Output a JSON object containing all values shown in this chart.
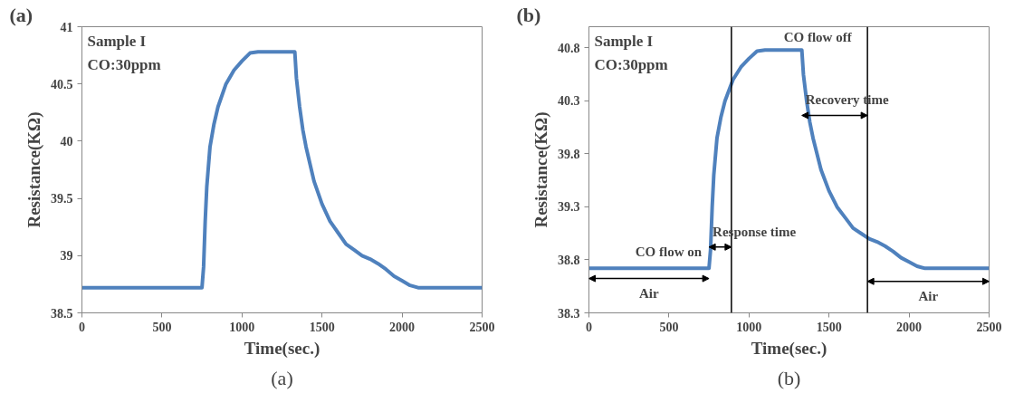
{
  "chart_data": [
    {
      "type": "line",
      "title": "(a)",
      "subtitle": "(a)",
      "xlabel": "Time(sec.)",
      "ylabel": "Resistance(KΩ)",
      "x": [
        0,
        100,
        200,
        300,
        400,
        500,
        600,
        700,
        750,
        760,
        770,
        780,
        800,
        825,
        850,
        900,
        950,
        1000,
        1050,
        1100,
        1200,
        1300,
        1330,
        1340,
        1360,
        1380,
        1400,
        1425,
        1450,
        1500,
        1550,
        1600,
        1650,
        1700,
        1750,
        1800,
        1850,
        1900,
        1950,
        2000,
        2050,
        2100,
        2200,
        2300,
        2400,
        2500
      ],
      "series": [
        {
          "color": "#4f81bd",
          "values": [
            38.72,
            38.72,
            38.72,
            38.72,
            38.72,
            38.72,
            38.72,
            38.72,
            38.72,
            38.9,
            39.3,
            39.6,
            39.95,
            40.15,
            40.3,
            40.5,
            40.62,
            40.7,
            40.77,
            40.78,
            40.78,
            40.78,
            40.78,
            40.55,
            40.3,
            40.1,
            39.95,
            39.8,
            39.65,
            39.45,
            39.3,
            39.2,
            39.1,
            39.05,
            39.0,
            38.97,
            38.93,
            38.88,
            38.82,
            38.78,
            38.74,
            38.72,
            38.72,
            38.72,
            38.72,
            38.72
          ]
        }
      ],
      "xlim": [
        0,
        2500
      ],
      "xticks": [
        0,
        500,
        1000,
        1500,
        2000,
        2500
      ],
      "ylim": [
        38.5,
        41
      ],
      "yticks": [
        38.5,
        39,
        39.5,
        40,
        40.5,
        41
      ],
      "grid": false,
      "line_style": "solid",
      "marker": "none",
      "annotations": [
        "Sample I",
        "CO:30ppm"
      ]
    },
    {
      "type": "line",
      "title": "(b)",
      "subtitle": "(b)",
      "xlabel": "Time(sec.)",
      "ylabel": "Resistance(KΩ)",
      "x": [
        0,
        100,
        200,
        300,
        400,
        500,
        600,
        700,
        750,
        760,
        770,
        780,
        800,
        825,
        850,
        900,
        950,
        1000,
        1050,
        1100,
        1200,
        1300,
        1330,
        1340,
        1360,
        1380,
        1400,
        1425,
        1450,
        1500,
        1550,
        1600,
        1650,
        1700,
        1750,
        1800,
        1850,
        1900,
        1950,
        2000,
        2050,
        2100,
        2200,
        2300,
        2400,
        2500
      ],
      "series": [
        {
          "color": "#4f81bd",
          "values": [
            38.72,
            38.72,
            38.72,
            38.72,
            38.72,
            38.72,
            38.72,
            38.72,
            38.72,
            38.9,
            39.3,
            39.6,
            39.95,
            40.15,
            40.3,
            40.5,
            40.62,
            40.7,
            40.77,
            40.78,
            40.78,
            40.78,
            40.78,
            40.55,
            40.3,
            40.1,
            39.95,
            39.8,
            39.65,
            39.45,
            39.3,
            39.2,
            39.1,
            39.05,
            39.0,
            38.97,
            38.93,
            38.88,
            38.82,
            38.78,
            38.74,
            38.72,
            38.72,
            38.72,
            38.72,
            38.72
          ]
        }
      ],
      "xlim": [
        0,
        2500
      ],
      "xticks": [
        0,
        500,
        1000,
        1500,
        2000,
        2500
      ],
      "ylim": [
        38.3,
        41.0
      ],
      "yticks": [
        38.3,
        38.8,
        39.3,
        39.8,
        40.3,
        40.8
      ],
      "grid": false,
      "line_style": "solid",
      "marker": "none",
      "ref_lines": [
        {
          "axis": "x",
          "value": 890,
          "color": "#000000"
        },
        {
          "axis": "x",
          "value": 1740,
          "color": "#000000"
        }
      ],
      "annotations": [
        "Sample I",
        "CO:30ppm",
        {
          "text": "CO flow on",
          "x": 750,
          "y": 38.72
        },
        {
          "text": "CO flow off",
          "x": 1330,
          "y": 40.78
        },
        "Air",
        "Response time",
        "Recovery time",
        "Air"
      ]
    }
  ]
}
